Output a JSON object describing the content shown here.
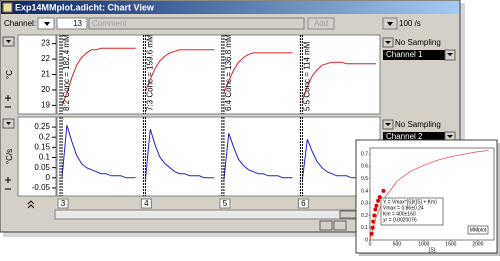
{
  "window": {
    "title": "Exp14MMplot.adicht: Chart View"
  },
  "toolbar": {
    "channel_label": "Channel:",
    "channel_number": "13",
    "comment_placeholder": "Comment",
    "add_button": "Add",
    "sample_rate": "100 /s"
  },
  "channels": [
    {
      "unit": "°C",
      "sampling": "No Sampling",
      "name": "Channel 1",
      "color": "#e02020",
      "ylim": [
        18.7,
        23.3
      ],
      "yticks": [
        19,
        20,
        21,
        22,
        23
      ],
      "values": [
        19.0,
        19.8,
        20.8,
        21.6,
        22.1,
        22.4,
        22.6,
        22.6,
        22.7,
        22.7,
        22.7,
        22.7,
        22.7,
        22.7,
        22.7,
        22.7,
        null,
        19.9,
        20.7,
        21.4,
        21.9,
        22.2,
        22.4,
        22.5,
        22.6,
        22.6,
        22.6,
        22.6,
        22.6,
        22.6,
        22.6,
        22.6,
        null,
        19.8,
        20.6,
        21.3,
        21.8,
        22.1,
        22.3,
        22.4,
        22.4,
        22.4,
        22.4,
        22.4,
        22.4,
        22.4,
        22.4,
        22.4,
        null,
        19.3,
        20.2,
        20.9,
        21.3,
        21.6,
        21.7,
        21.8,
        21.8,
        21.8,
        21.7,
        21.7,
        21.7,
        21.7,
        21.7,
        21.7,
        21.7
      ]
    },
    {
      "unit": "°C/s",
      "sampling": "No Sampling",
      "name": "Channel 2",
      "color": "#2020d0",
      "ylim": [
        -0.07,
        0.28
      ],
      "yticks": [
        0.25,
        0.2,
        0.15,
        0.1,
        0.05,
        0,
        -0.05
      ],
      "values": [
        0.0,
        0.26,
        0.18,
        0.11,
        0.07,
        0.05,
        0.04,
        0.03,
        0.02,
        0.02,
        0.01,
        0.01,
        0.01,
        0.0,
        0.0,
        0.0,
        null,
        -0.01,
        0.24,
        0.16,
        0.1,
        0.07,
        0.05,
        0.03,
        0.02,
        0.02,
        0.01,
        0.01,
        0.01,
        0.0,
        0.0,
        0.0,
        null,
        -0.01,
        0.22,
        0.15,
        0.09,
        0.06,
        0.04,
        0.03,
        0.02,
        0.02,
        0.01,
        0.01,
        0.01,
        0.0,
        0.0,
        0.0,
        null,
        -0.01,
        0.19,
        0.13,
        0.08,
        0.05,
        0.03,
        0.02,
        0.01,
        0.01,
        0.01,
        0.0,
        0.0,
        0.0,
        0.0,
        0.0,
        0.0
      ]
    }
  ],
  "comments": [
    "8:2 Conc = 182.4 mM",
    "7:3 Conc = 159.6 mM",
    "6:4 Conc = 136.8 mM",
    "5:5 Conc = 114 mM"
  ],
  "blocks": [
    "3",
    "4",
    "5",
    "6"
  ],
  "chart_data": {
    "type": "scatter",
    "x_label": "[S]",
    "xlim": [
      0,
      2300
    ],
    "ylim": [
      0,
      0.75
    ],
    "xticks": [
      0,
      500,
      1000,
      1500,
      2000
    ],
    "yticks": [
      0,
      0.1,
      0.2,
      0.3,
      0.4,
      0.5,
      0.6,
      0.7
    ],
    "points": {
      "color": "#e00000",
      "x": [
        30,
        50,
        60,
        80,
        100,
        120,
        150,
        180,
        250
      ],
      "y": [
        0.05,
        0.1,
        0.15,
        0.2,
        0.25,
        0.28,
        0.32,
        0.35,
        0.4
      ]
    },
    "fit": {
      "color": "#ff5050",
      "x": [
        0,
        100,
        250,
        500,
        750,
        1000,
        1250,
        1500,
        1750,
        2000,
        2200
      ],
      "y": [
        0,
        0.17,
        0.33,
        0.48,
        0.56,
        0.61,
        0.65,
        0.68,
        0.7,
        0.72,
        0.73
      ]
    },
    "annotations": [
      "Y = Vmax*[S]/([S] + Km)",
      "Vmax = 0.86±0.24",
      "Km = 400±160",
      "χ² = 0.0020076"
    ],
    "label": "MMplot"
  }
}
